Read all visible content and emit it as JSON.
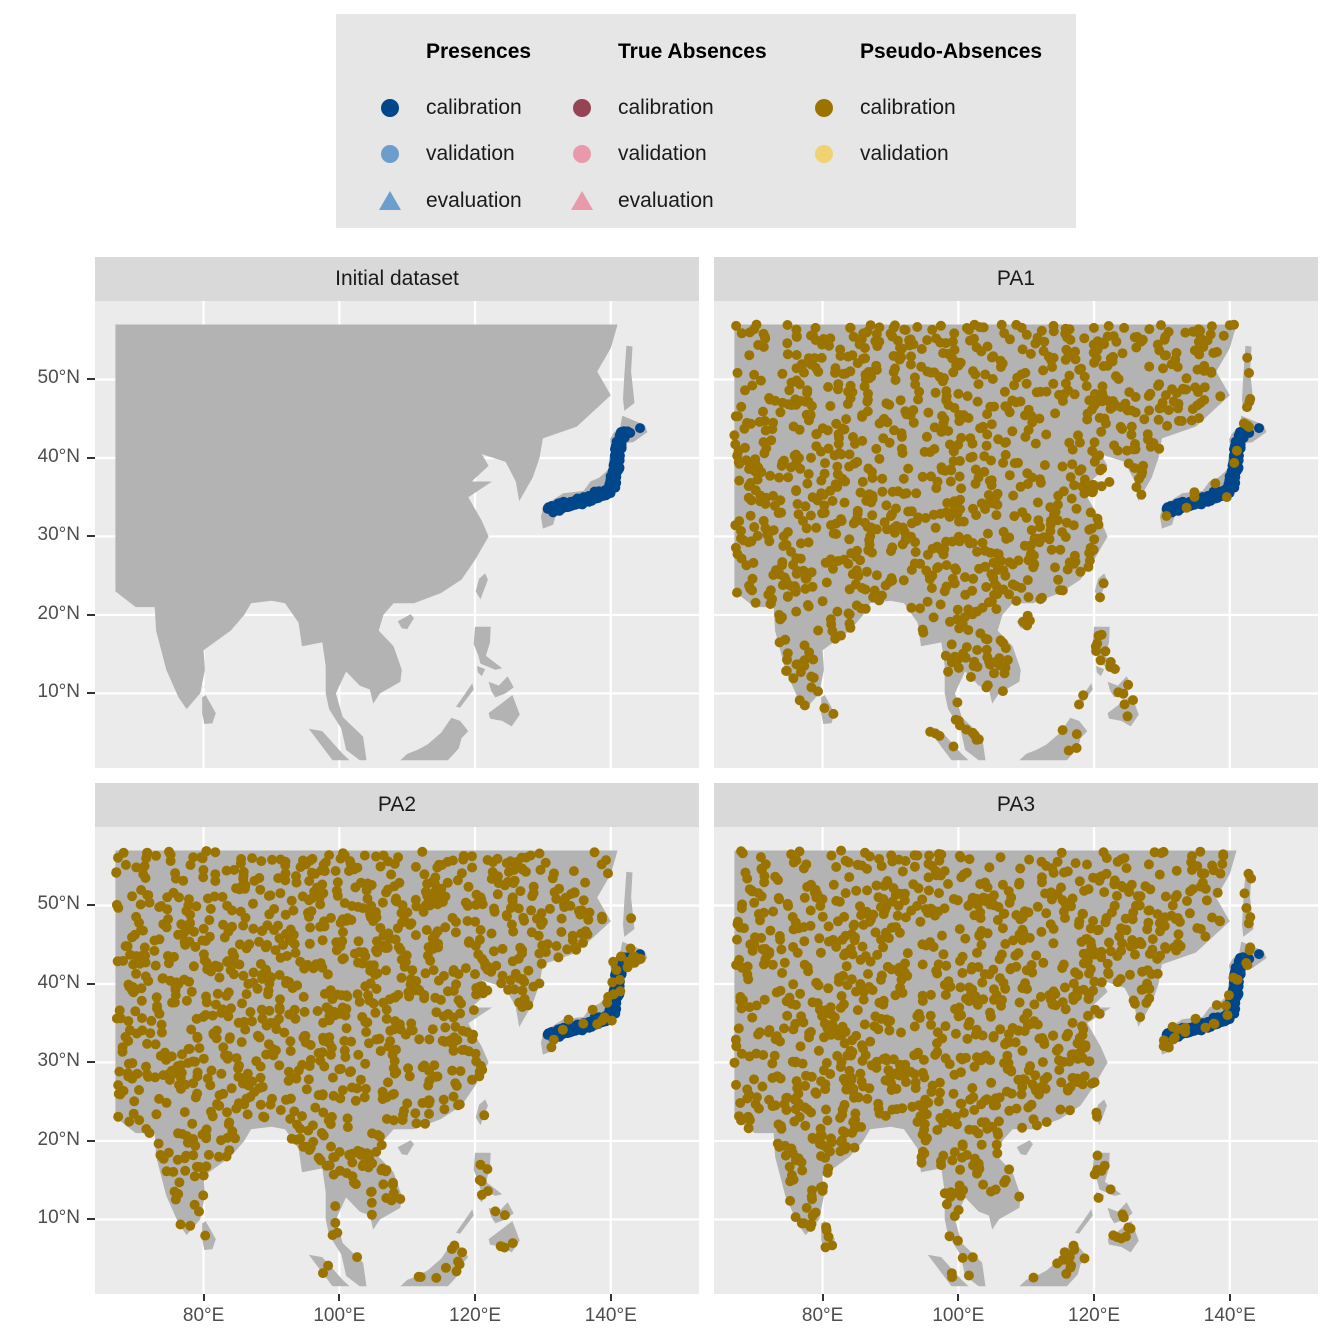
{
  "legend": {
    "groups": [
      {
        "title": "Presences",
        "items": [
          {
            "label": "calibration",
            "shape": "circle",
            "color": "#00468b"
          },
          {
            "label": "validation",
            "shape": "circle",
            "color": "#6d9dcc"
          },
          {
            "label": "evaluation",
            "shape": "triangle",
            "color": "#6d9dcc"
          }
        ]
      },
      {
        "title": "True Absences",
        "items": [
          {
            "label": "calibration",
            "shape": "circle",
            "color": "#974356"
          },
          {
            "label": "validation",
            "shape": "circle",
            "color": "#e99aaa"
          },
          {
            "label": "evaluation",
            "shape": "triangle",
            "color": "#e99aaa"
          }
        ]
      },
      {
        "title": "Pseudo-Absences",
        "items": [
          {
            "label": "calibration",
            "shape": "circle",
            "color": "#9b7400"
          },
          {
            "label": "validation",
            "shape": "circle",
            "color": "#f0d272"
          }
        ]
      }
    ]
  },
  "panels": [
    {
      "title": "Initial dataset",
      "pseudo_absences": false
    },
    {
      "title": "PA1",
      "pseudo_absences": true
    },
    {
      "title": "PA2",
      "pseudo_absences": true
    },
    {
      "title": "PA3",
      "pseudo_absences": true
    }
  ],
  "axes": {
    "y_ticks": [
      "10°N",
      "20°N",
      "30°N",
      "40°N",
      "50°N"
    ],
    "y_values": [
      10,
      20,
      30,
      40,
      50
    ],
    "x_ticks": [
      "80°E",
      "100°E",
      "120°E",
      "140°E"
    ],
    "x_values": [
      80,
      100,
      120,
      140
    ],
    "lon_range": [
      64,
      153
    ],
    "lat_range": [
      0.5,
      60
    ]
  },
  "colors": {
    "panel_background": "#ebebeb",
    "grid": "#ffffff",
    "land": "#b3b3b3",
    "presence_calibration": "#00468b",
    "pseudo_absence_calibration": "#9b7400"
  }
}
